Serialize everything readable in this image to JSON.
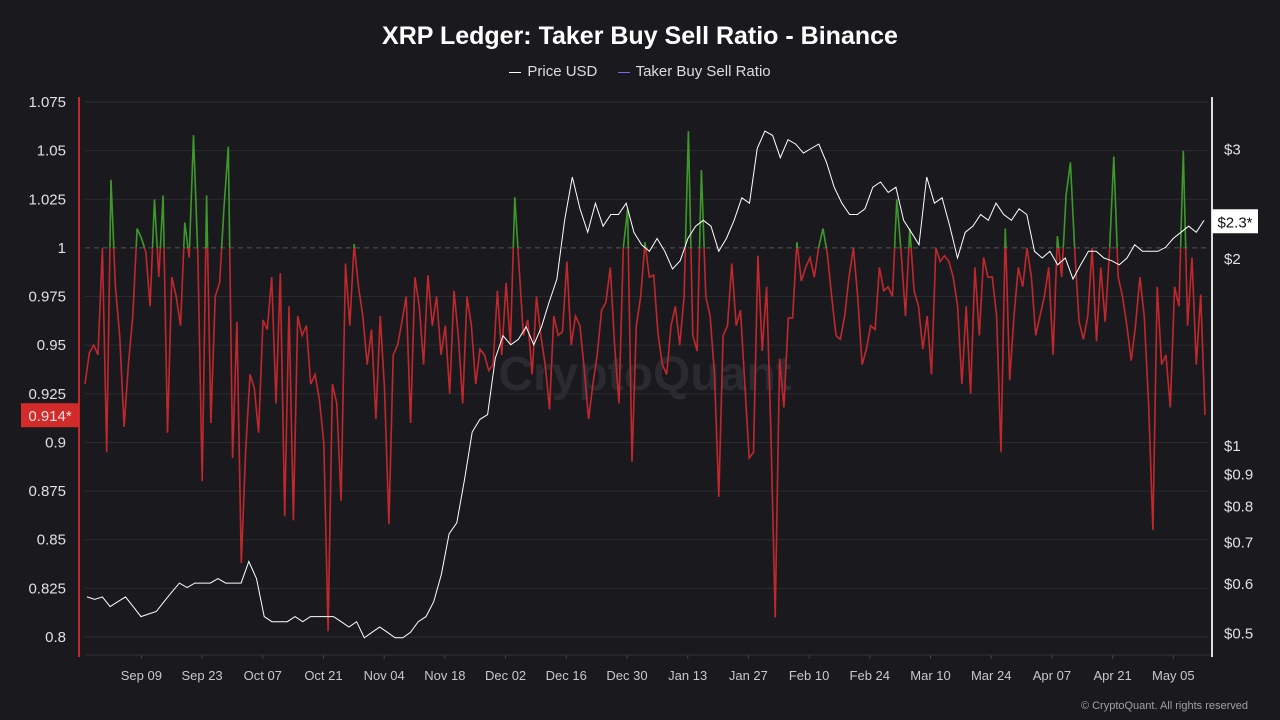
{
  "chart_data": {
    "type": "line",
    "title": "XRP Ledger: Taker Buy Sell Ratio - Binance",
    "legend": [
      {
        "name": "Price USD",
        "color": "#ffffff"
      },
      {
        "name": "Taker Buy Sell Ratio",
        "color": "#6b6bff"
      }
    ],
    "legend_placement": "top-center",
    "watermark": "CryptoQuant",
    "footer": "© CryptoQuant. All rights reserved",
    "x_range_days": [
      0,
      259
    ],
    "x_start_date": "Aug 27",
    "x_ticks": [
      "Sep 09",
      "Sep 23",
      "Oct 07",
      "Oct 21",
      "Nov 04",
      "Nov 18",
      "Dec 02",
      "Dec 16",
      "Dec 30",
      "Jan 13",
      "Jan 27",
      "Feb 10",
      "Feb 24",
      "Mar 10",
      "Mar 24",
      "Apr 07",
      "Apr 21",
      "May 05"
    ],
    "x_tick_first_day": 13,
    "x_tick_step_days": 14,
    "left_axis": {
      "ylim": [
        0.8,
        1.075
      ],
      "ticks": [
        "1.075",
        "1.05",
        "1.025",
        "1",
        "0.975",
        "0.95",
        "0.925",
        "0.9",
        "0.875",
        "0.85",
        "0.825",
        "0.8"
      ],
      "tick_values": [
        1.075,
        1.05,
        1.025,
        1,
        0.975,
        0.95,
        0.925,
        0.9,
        0.875,
        0.85,
        0.825,
        0.8
      ],
      "reference_line": 1
    },
    "right_axis": {
      "scale": "log",
      "ticks": [
        "$3",
        "$2",
        "$1",
        "$0.9",
        "$0.8",
        "$0.7",
        "$0.6",
        "$0.5"
      ],
      "tick_values": [
        3,
        2,
        1,
        0.9,
        0.8,
        0.7,
        0.6,
        0.5
      ]
    },
    "current_ratio_label": "0.914*",
    "current_price_label": "$2.3*",
    "colors": {
      "above": "#3d9a2a",
      "below": "#c0282d",
      "price": "#ffffff",
      "badge_ratio": "#d32a2a"
    },
    "series": [
      {
        "name": "Taker Buy Sell Ratio",
        "axis": "left",
        "values": [
          0.93,
          0.946,
          0.95,
          0.945,
          1.0,
          0.895,
          1.035,
          0.98,
          0.955,
          0.908,
          0.94,
          0.965,
          1.01,
          1.005,
          0.998,
          0.97,
          1.025,
          0.985,
          1.027,
          0.905,
          0.985,
          0.975,
          0.96,
          1.013,
          0.995,
          1.058,
          0.995,
          0.88,
          1.027,
          0.91,
          0.975,
          0.982,
          1.02,
          1.052,
          0.892,
          0.962,
          0.838,
          0.895,
          0.935,
          0.928,
          0.905,
          0.963,
          0.958,
          0.985,
          0.92,
          0.987,
          0.862,
          0.97,
          0.86,
          0.965,
          0.955,
          0.96,
          0.93,
          0.935,
          0.922,
          0.9,
          0.803,
          0.93,
          0.92,
          0.87,
          0.992,
          0.96,
          1.002,
          0.98,
          0.965,
          0.94,
          0.958,
          0.912,
          0.965,
          0.928,
          0.858,
          0.945,
          0.95,
          0.962,
          0.975,
          0.91,
          0.985,
          0.97,
          0.94,
          0.986,
          0.96,
          0.975,
          0.945,
          0.96,
          0.925,
          0.978,
          0.955,
          0.92,
          0.975,
          0.96,
          0.93,
          0.948,
          0.945,
          0.937,
          0.94,
          0.978,
          0.945,
          0.982,
          0.95,
          1.026,
          0.99,
          0.955,
          0.963,
          0.935,
          0.975,
          0.955,
          0.94,
          0.917,
          0.965,
          0.955,
          0.957,
          0.993,
          0.95,
          0.965,
          0.96,
          0.938,
          0.912,
          0.93,
          0.945,
          0.968,
          0.972,
          0.99,
          0.95,
          0.92,
          1.0,
          1.02,
          0.89,
          0.96,
          0.975,
          1.003,
          0.985,
          0.986,
          0.956,
          0.94,
          0.935,
          0.96,
          0.97,
          0.95,
          0.975,
          1.06,
          0.955,
          0.947,
          1.04,
          0.975,
          0.965,
          0.935,
          0.872,
          0.955,
          0.96,
          0.992,
          0.96,
          0.968,
          0.93,
          0.892,
          0.895,
          0.996,
          0.947,
          0.98,
          0.905,
          0.81,
          0.943,
          0.918,
          0.964,
          0.964,
          1.003,
          0.983,
          0.99,
          0.995,
          0.985,
          1.0,
          1.01,
          0.997,
          0.975,
          0.955,
          0.953,
          0.965,
          0.985,
          1.0,
          0.975,
          0.94,
          0.948,
          0.96,
          0.958,
          0.99,
          0.978,
          0.98,
          0.975,
          1.025,
          0.998,
          0.965,
          1.01,
          0.978,
          0.97,
          0.948,
          0.965,
          0.935,
          1.0,
          0.993,
          0.996,
          0.993,
          0.985,
          0.97,
          0.93,
          0.97,
          0.925,
          0.99,
          0.955,
          0.995,
          0.985,
          0.985,
          0.965,
          0.895,
          1.01,
          0.932,
          0.965,
          0.99,
          0.98,
          1.0,
          0.985,
          0.955,
          0.965,
          0.975,
          0.99,
          0.945,
          1.006,
          0.985,
          1.027,
          1.044,
          0.998,
          0.962,
          0.953,
          0.965,
          1.0,
          0.952,
          0.99,
          0.962,
          0.998,
          1.047,
          0.985,
          0.975,
          0.96,
          0.942,
          0.96,
          0.985,
          0.965,
          0.92,
          0.855,
          0.98,
          0.94,
          0.945,
          0.918,
          0.98,
          0.97,
          1.05,
          0.96,
          0.995,
          0.94,
          0.976,
          0.914
        ]
      },
      {
        "name": "Price USD",
        "axis": "right",
        "values": [
          0.57,
          0.565,
          0.57,
          0.55,
          0.56,
          0.57,
          0.55,
          0.53,
          0.535,
          0.54,
          0.56,
          0.58,
          0.6,
          0.59,
          0.6,
          0.6,
          0.6,
          0.61,
          0.6,
          0.6,
          0.6,
          0.65,
          0.61,
          0.53,
          0.52,
          0.52,
          0.52,
          0.53,
          0.52,
          0.53,
          0.53,
          0.53,
          0.53,
          0.52,
          0.51,
          0.52,
          0.49,
          0.5,
          0.51,
          0.5,
          0.49,
          0.49,
          0.5,
          0.52,
          0.53,
          0.56,
          0.62,
          0.72,
          0.75,
          0.88,
          1.05,
          1.1,
          1.12,
          1.38,
          1.5,
          1.45,
          1.48,
          1.55,
          1.45,
          1.55,
          1.7,
          1.85,
          2.3,
          2.7,
          2.4,
          2.2,
          2.45,
          2.25,
          2.35,
          2.35,
          2.45,
          2.2,
          2.1,
          2.05,
          2.15,
          2.05,
          1.92,
          1.98,
          2.15,
          2.25,
          2.3,
          2.25,
          2.05,
          2.15,
          2.3,
          2.5,
          2.45,
          3.0,
          3.2,
          3.15,
          2.9,
          3.1,
          3.05,
          2.95,
          3.0,
          3.05,
          2.85,
          2.6,
          2.45,
          2.35,
          2.35,
          2.4,
          2.6,
          2.65,
          2.55,
          2.6,
          2.3,
          2.2,
          2.1,
          2.7,
          2.45,
          2.5,
          2.25,
          2.0,
          2.2,
          2.25,
          2.35,
          2.3,
          2.45,
          2.35,
          2.3,
          2.4,
          2.35,
          2.05,
          2.0,
          2.05,
          1.95,
          2.0,
          1.85,
          1.95,
          2.05,
          2.05,
          2.0,
          1.98,
          1.95,
          2.0,
          2.1,
          2.05,
          2.05,
          2.05,
          2.08,
          2.15,
          2.2,
          2.25,
          2.2,
          2.3
        ]
      }
    ]
  }
}
